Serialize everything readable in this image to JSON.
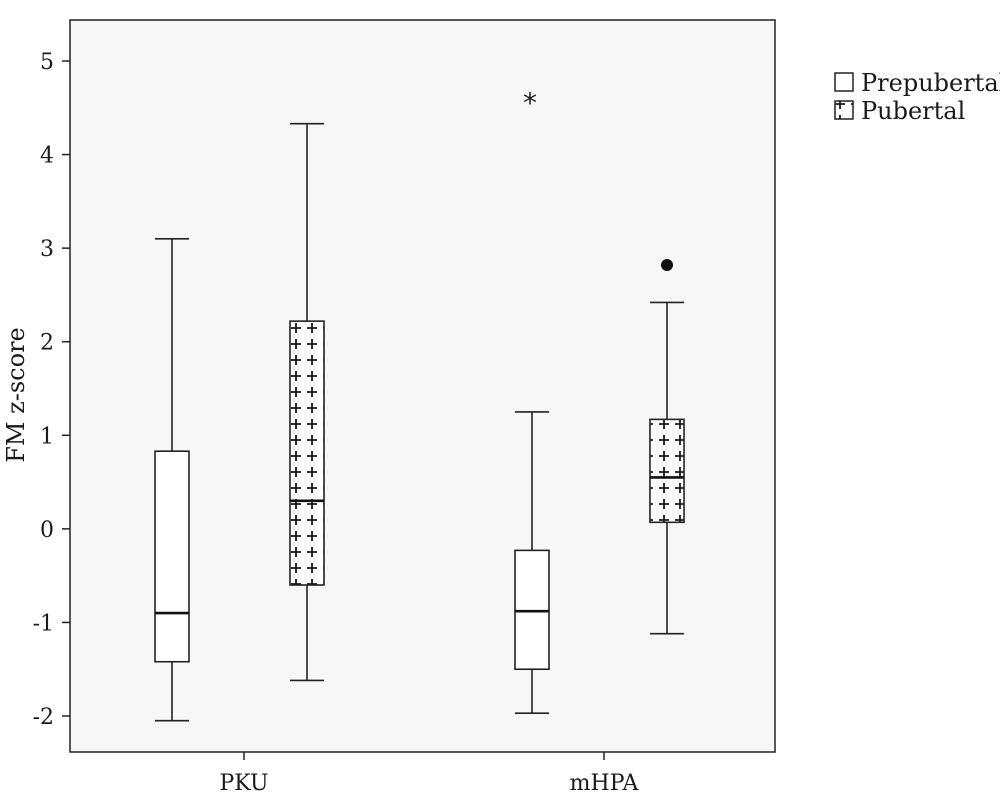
{
  "chart_data": {
    "type": "boxplot",
    "ylabel": "FM z-score",
    "xlabel": "",
    "ylim": [
      -2.4,
      5.5
    ],
    "yticks": [
      -2,
      -1,
      0,
      1,
      2,
      3,
      4,
      5
    ],
    "categories": [
      "PKU",
      "mHPA"
    ],
    "legend_position": "top-right, outside plot",
    "grid": false,
    "series": [
      {
        "name": "Prepubertal",
        "fill": "plain",
        "boxes": [
          {
            "category": "PKU",
            "whisker_low": -2.05,
            "q1": -1.42,
            "median": -0.9,
            "q3": 0.83,
            "whisker_high": 3.1,
            "outliers": [],
            "extremes": []
          },
          {
            "category": "mHPA",
            "whisker_low": -1.97,
            "q1": -1.5,
            "median": -0.88,
            "q3": -0.23,
            "whisker_high": 1.25,
            "outliers": [],
            "extremes": [
              4.58
            ]
          }
        ]
      },
      {
        "name": "Pubertal",
        "fill": "cross-hatched",
        "boxes": [
          {
            "category": "PKU",
            "whisker_low": -1.62,
            "q1": -0.6,
            "median": 0.3,
            "q3": 2.22,
            "whisker_high": 4.33,
            "outliers": [],
            "extremes": []
          },
          {
            "category": "mHPA",
            "whisker_low": -1.12,
            "q1": 0.07,
            "median": 0.55,
            "q3": 1.17,
            "whisker_high": 2.42,
            "outliers": [
              2.82
            ],
            "extremes": []
          }
        ]
      }
    ]
  }
}
